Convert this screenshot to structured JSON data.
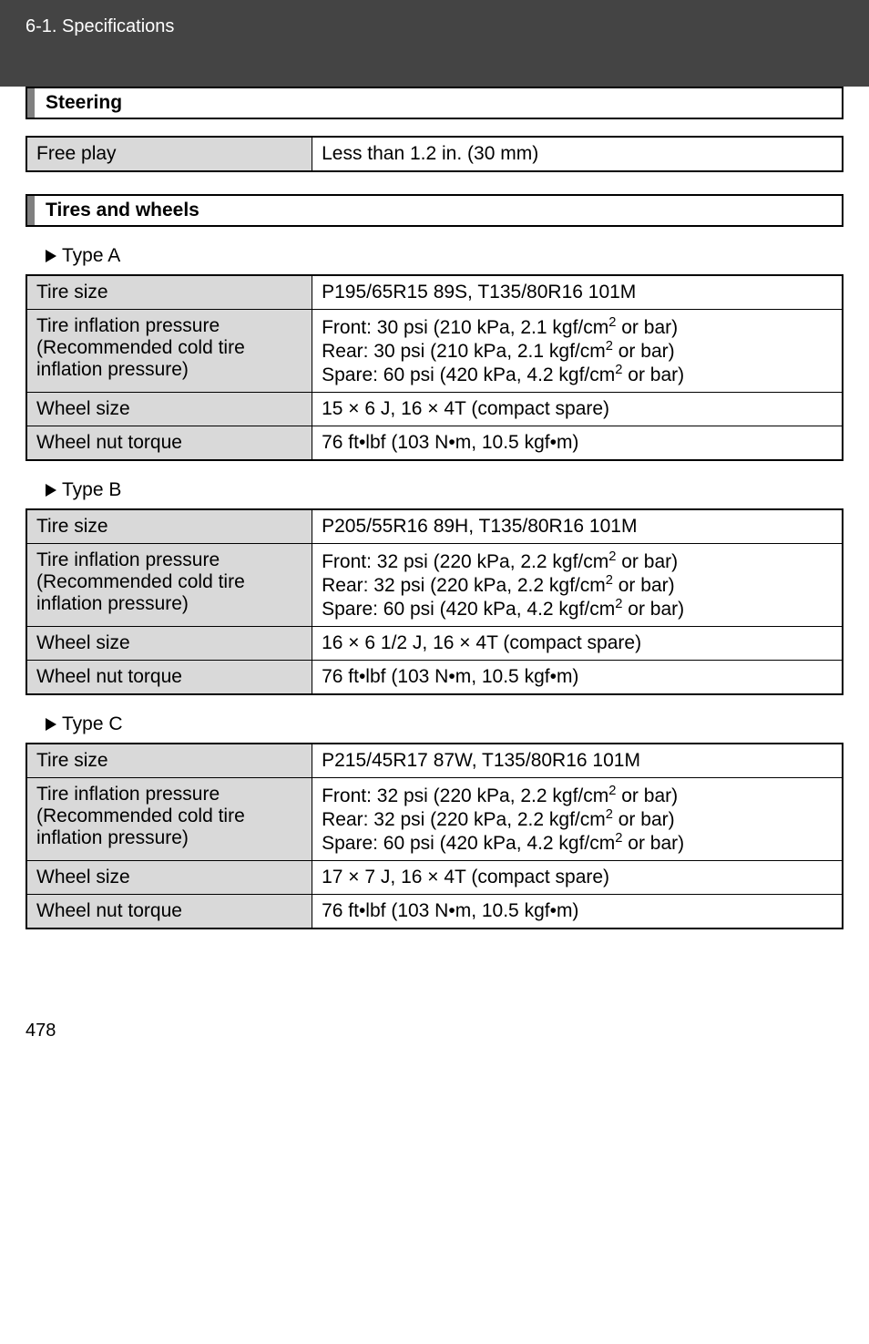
{
  "breadcrumb": "6-1. Specifications",
  "page_number": "478",
  "sections": {
    "steering": {
      "title": "Steering",
      "row": {
        "label": "Free play",
        "value": "Less than 1.2 in. (30 mm)"
      }
    },
    "tires": {
      "title": "Tires and wheels",
      "types": [
        {
          "label": "Type A",
          "rows": {
            "tire_size": {
              "label": "Tire size",
              "value": "P195/65R15 89S, T135/80R16 101M"
            },
            "inflation": {
              "label": "Tire inflation pressure (Recommended cold tire inflation pressure)",
              "front": "Front: 30 psi (210 kPa, 2.1 kgf/cm",
              "rear": "Rear: 30 psi (210 kPa, 2.1 kgf/cm",
              "spare": "Spare: 60 psi (420 kPa, 4.2 kgf/cm",
              "suffix": " or bar)"
            },
            "wheel_size": {
              "label": "Wheel size",
              "value": "15 × 6 J, 16 × 4T (compact spare)"
            },
            "nut_torque": {
              "label": "Wheel nut torque",
              "value": "76 ft•lbf (103 N•m, 10.5 kgf•m)"
            }
          }
        },
        {
          "label": "Type B",
          "rows": {
            "tire_size": {
              "label": "Tire size",
              "value": "P205/55R16 89H, T135/80R16 101M"
            },
            "inflation": {
              "label": "Tire inflation pressure (Recommended cold tire inflation pressure)",
              "front": "Front: 32 psi (220 kPa, 2.2 kgf/cm",
              "rear": "Rear: 32 psi (220 kPa, 2.2 kgf/cm",
              "spare": "Spare: 60 psi (420 kPa, 4.2 kgf/cm",
              "suffix": " or bar)"
            },
            "wheel_size": {
              "label": "Wheel size",
              "value": "16 × 6 1/2 J, 16 × 4T (compact spare)"
            },
            "nut_torque": {
              "label": "Wheel nut torque",
              "value": "76 ft•lbf (103 N•m, 10.5 kgf•m)"
            }
          }
        },
        {
          "label": "Type C",
          "rows": {
            "tire_size": {
              "label": "Tire size",
              "value": "P215/45R17 87W, T135/80R16 101M"
            },
            "inflation": {
              "label": "Tire inflation pressure (Recommended cold tire inflation pressure)",
              "front": "Front: 32 psi (220 kPa, 2.2 kgf/cm",
              "rear": "Rear: 32 psi (220 kPa, 2.2 kgf/cm",
              "spare": "Spare: 60 psi (420 kPa, 4.2 kgf/cm",
              "suffix": " or bar)"
            },
            "wheel_size": {
              "label": "Wheel size",
              "value": "17 × 7 J, 16 × 4T (compact spare)"
            },
            "nut_torque": {
              "label": "Wheel nut torque",
              "value": "76 ft•lbf (103 N•m, 10.5 kgf•m)"
            }
          }
        }
      ]
    }
  }
}
